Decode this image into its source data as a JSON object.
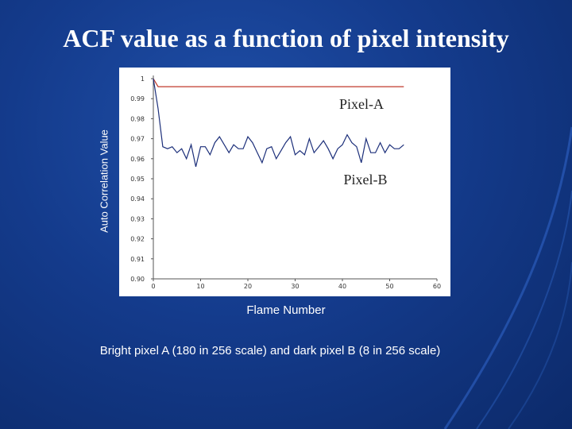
{
  "slide": {
    "title": "ACF value as a function of pixel intensity",
    "caption": "Bright pixel A (180 in 256 scale) and dark pixel B (8 in 256 scale)"
  },
  "chart_data": {
    "type": "line",
    "xlabel": "Flame Number",
    "ylabel": "Auto Correlation Value",
    "xlim": [
      0,
      60
    ],
    "ylim": [
      0.9,
      1.0
    ],
    "x_ticks": [
      "0",
      "10",
      "20",
      "30",
      "40",
      "50",
      "60"
    ],
    "y_ticks": [
      "0.90",
      "0.91",
      "0.92",
      "0.93",
      "0.94",
      "0.95",
      "0.96",
      "0.97",
      "0.98",
      "0.99",
      "1"
    ],
    "grid": false,
    "colors": {
      "pixel_a": "#c0392b",
      "pixel_b": "#1c2f7a"
    },
    "series": [
      {
        "name": "Pixel-A",
        "x": [
          0,
          1,
          2,
          3,
          4,
          5,
          6,
          7,
          8,
          9,
          10,
          11,
          12,
          13,
          14,
          15,
          16,
          17,
          18,
          19,
          20,
          21,
          22,
          23,
          24,
          25,
          26,
          27,
          28,
          29,
          30,
          31,
          32,
          33,
          34,
          35,
          36,
          37,
          38,
          39,
          40,
          41,
          42,
          43,
          44,
          45,
          46,
          47,
          48,
          49,
          50,
          51,
          52,
          53
        ],
        "values": [
          1.0,
          0.996,
          0.996,
          0.996,
          0.996,
          0.996,
          0.996,
          0.996,
          0.996,
          0.996,
          0.996,
          0.996,
          0.996,
          0.996,
          0.996,
          0.996,
          0.996,
          0.996,
          0.996,
          0.996,
          0.996,
          0.996,
          0.996,
          0.996,
          0.996,
          0.996,
          0.996,
          0.996,
          0.996,
          0.996,
          0.996,
          0.996,
          0.996,
          0.996,
          0.996,
          0.996,
          0.996,
          0.996,
          0.996,
          0.996,
          0.996,
          0.996,
          0.996,
          0.996,
          0.996,
          0.996,
          0.996,
          0.996,
          0.996,
          0.996,
          0.996,
          0.996,
          0.996,
          0.996
        ]
      },
      {
        "name": "Pixel-B",
        "x": [
          0,
          1,
          2,
          3,
          4,
          5,
          6,
          7,
          8,
          9,
          10,
          11,
          12,
          13,
          14,
          15,
          16,
          17,
          18,
          19,
          20,
          21,
          22,
          23,
          24,
          25,
          26,
          27,
          28,
          29,
          30,
          31,
          32,
          33,
          34,
          35,
          36,
          37,
          38,
          39,
          40,
          41,
          42,
          43,
          44,
          45,
          46,
          47,
          48,
          49,
          50,
          51,
          52,
          53
        ],
        "values": [
          1.0,
          0.985,
          0.966,
          0.965,
          0.966,
          0.963,
          0.965,
          0.96,
          0.967,
          0.956,
          0.966,
          0.966,
          0.962,
          0.968,
          0.971,
          0.967,
          0.963,
          0.967,
          0.965,
          0.965,
          0.971,
          0.968,
          0.963,
          0.958,
          0.965,
          0.966,
          0.96,
          0.964,
          0.968,
          0.971,
          0.962,
          0.964,
          0.962,
          0.97,
          0.963,
          0.966,
          0.969,
          0.965,
          0.96,
          0.965,
          0.967,
          0.972,
          0.968,
          0.966,
          0.958,
          0.97,
          0.963,
          0.963,
          0.968,
          0.963,
          0.967,
          0.965,
          0.965,
          0.967
        ]
      }
    ]
  }
}
